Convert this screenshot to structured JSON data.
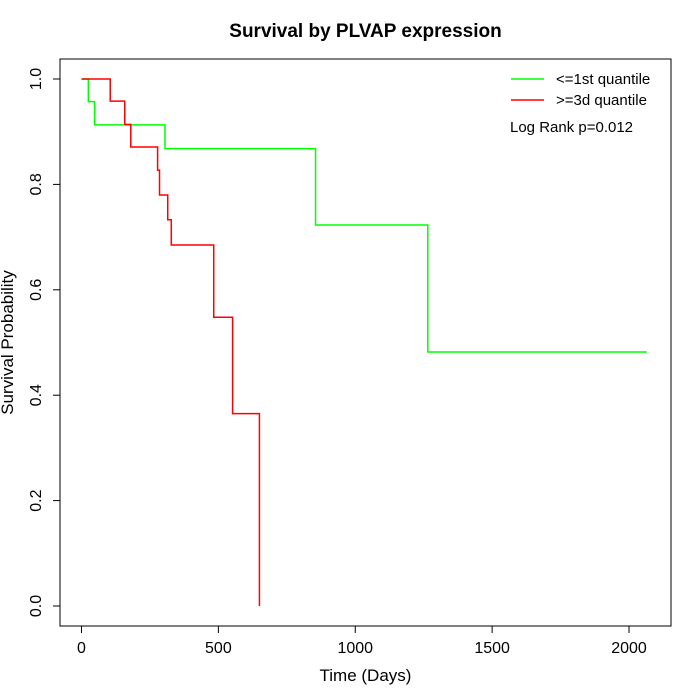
{
  "chart_data": {
    "type": "line",
    "step": true,
    "title": "Survival by PLVAP expression",
    "xlabel": "Time (Days)",
    "ylabel": "Survival Probability",
    "xlim": [
      0,
      2070
    ],
    "ylim": [
      0,
      1
    ],
    "xticks": [
      0,
      500,
      1000,
      1500,
      2000
    ],
    "yticks": [
      0.0,
      0.2,
      0.4,
      0.6,
      0.8,
      1.0
    ],
    "xtick_labels": [
      "0",
      "500",
      "1000",
      "1500",
      "2000"
    ],
    "ytick_labels": [
      "0.0",
      "0.2",
      "0.4",
      "0.6",
      "0.8",
      "1.0"
    ],
    "grid": false,
    "legend_position": "top-right",
    "annotation": "Log Rank p=0.012",
    "series": [
      {
        "name": "<=1st quantile",
        "color": "#00ff00",
        "x": [
          0,
          25,
          48,
          305,
          855,
          1265,
          2065
        ],
        "y": [
          1.0,
          0.957,
          0.913,
          0.868,
          0.723,
          0.482,
          0.482
        ]
      },
      {
        "name": ">=3d quantile",
        "color": "#ff0000",
        "x": [
          0,
          105,
          158,
          180,
          278,
          285,
          315,
          328,
          483,
          552,
          650
        ],
        "y": [
          1.0,
          0.958,
          0.914,
          0.871,
          0.827,
          0.78,
          0.733,
          0.685,
          0.548,
          0.365,
          0.0
        ]
      }
    ]
  }
}
